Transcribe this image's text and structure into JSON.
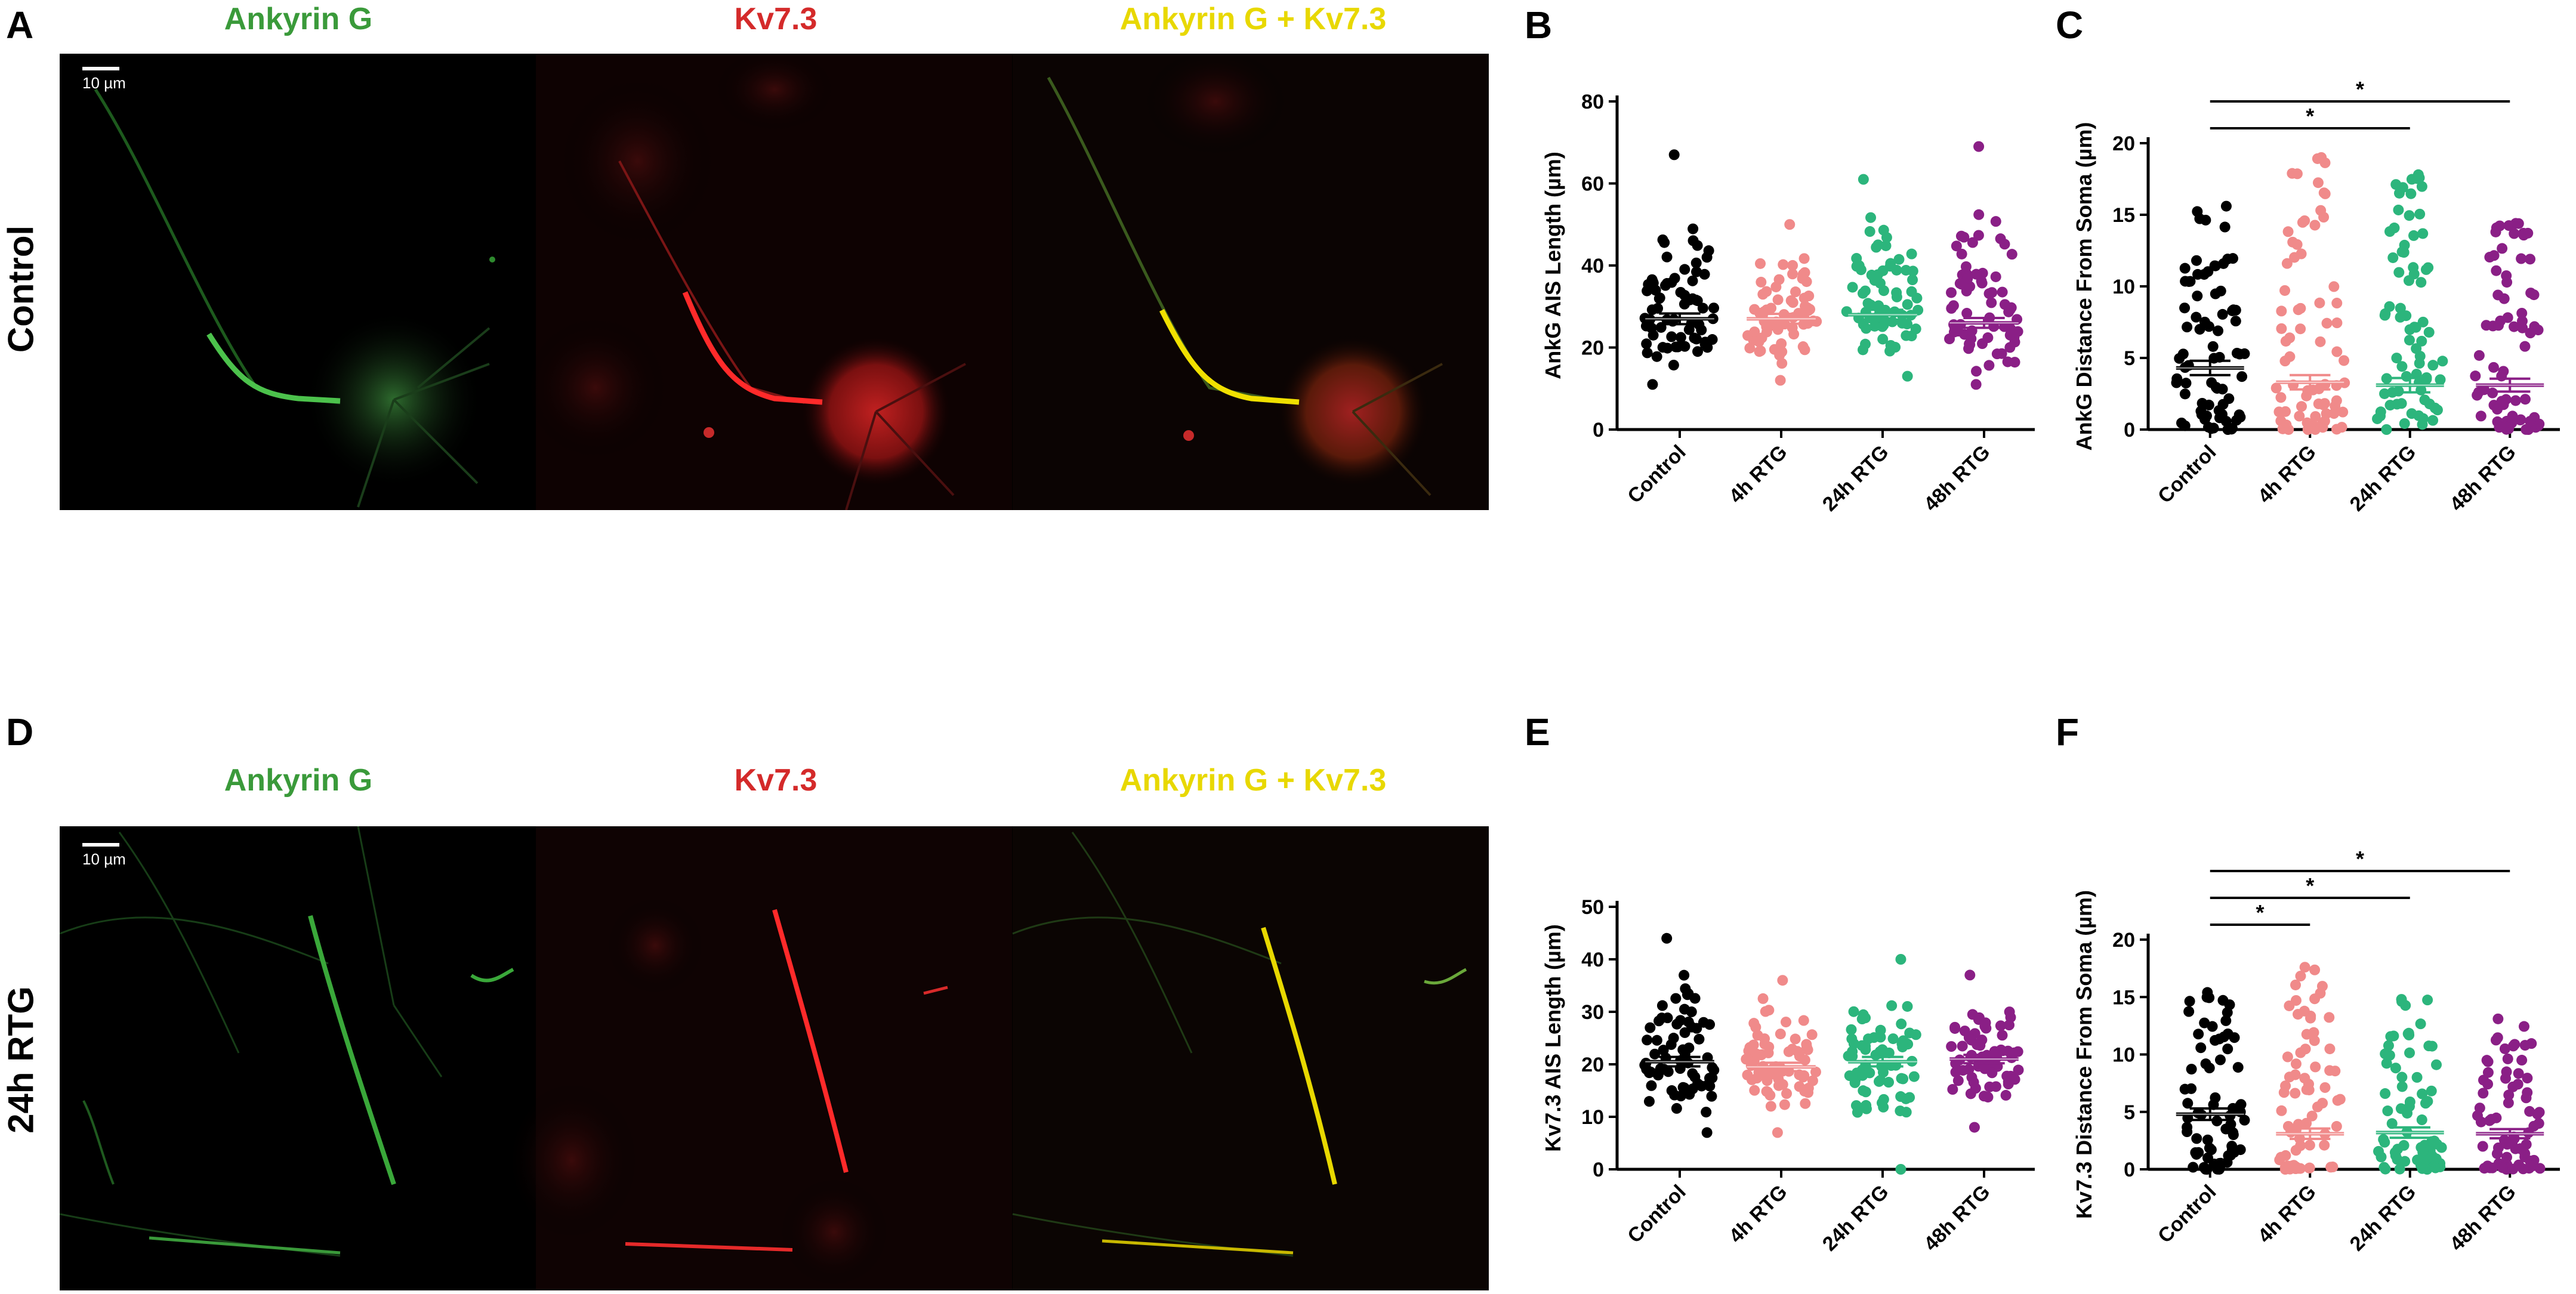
{
  "panels": {
    "A": "A",
    "B": "B",
    "C": "C",
    "D": "D",
    "E": "E",
    "F": "F"
  },
  "row_labels": {
    "top": "Control",
    "bottom": "24h RTG"
  },
  "channels": {
    "green": "Ankyrin G",
    "red": "Kv7.3",
    "merge": "Ankyrin G + Kv7.3"
  },
  "scale_bar": "10 µm",
  "colors": {
    "green": "#3a9a3a",
    "red": "#d42a2a",
    "merge": "#e8d800",
    "Control": "#000000",
    "4h RTG": "#f08a8a",
    "24h RTG": "#2cb57c",
    "48h RTG": "#8a1f86"
  },
  "chart_data": [
    {
      "type": "scatter",
      "panel": "B",
      "ylabel": "AnkG AIS Length (µm)",
      "ylim": [
        0,
        80
      ],
      "yticks": [
        0,
        20,
        40,
        60,
        80
      ],
      "categories": [
        "Control",
        "4h RTG",
        "24h RTG",
        "48h RTG"
      ],
      "series": [
        {
          "name": "Control",
          "mean": 27,
          "sem": 1.3,
          "min": 11,
          "max": 67,
          "n": 70
        },
        {
          "name": "4h RTG",
          "mean": 27,
          "sem": 1.2,
          "min": 12,
          "max": 50,
          "n": 70
        },
        {
          "name": "24h RTG",
          "mean": 28,
          "sem": 1.2,
          "min": 13,
          "max": 61,
          "n": 70
        },
        {
          "name": "48h RTG",
          "mean": 26,
          "sem": 1.2,
          "min": 11,
          "max": 69,
          "n": 70
        }
      ],
      "significance": []
    },
    {
      "type": "scatter",
      "panel": "C",
      "ylabel": "AnkG Distance From Soma (µm)",
      "ylim": [
        0,
        20
      ],
      "yticks": [
        0,
        5,
        10,
        15,
        20
      ],
      "categories": [
        "Control",
        "4h RTG",
        "24h RTG",
        "48h RTG"
      ],
      "series": [
        {
          "name": "Control",
          "mean": 4.3,
          "sem": 0.5,
          "min": 0,
          "max": 15.6,
          "n": 75
        },
        {
          "name": "4h RTG",
          "mean": 3.3,
          "sem": 0.5,
          "min": 0,
          "max": 19,
          "n": 75
        },
        {
          "name": "24h RTG",
          "mean": 3.1,
          "sem": 0.5,
          "min": 0,
          "max": 17.8,
          "n": 75
        },
        {
          "name": "48h RTG",
          "mean": 3.1,
          "sem": 0.45,
          "min": 0,
          "max": 14.4,
          "n": 75
        }
      ],
      "significance": [
        {
          "from": "Control",
          "to": "24h RTG",
          "label": "*"
        },
        {
          "from": "Control",
          "to": "48h RTG",
          "label": "*"
        }
      ]
    },
    {
      "type": "scatter",
      "panel": "E",
      "ylabel": "Kv7.3 AIS Length (µm)",
      "ylim": [
        0,
        50
      ],
      "yticks": [
        0,
        10,
        20,
        30,
        40,
        50
      ],
      "categories": [
        "Control",
        "4h RTG",
        "24h RTG",
        "48h RTG"
      ],
      "series": [
        {
          "name": "Control",
          "mean": 20.5,
          "sem": 0.9,
          "min": 7,
          "max": 44,
          "n": 70
        },
        {
          "name": "4h RTG",
          "mean": 19.5,
          "sem": 0.8,
          "min": 7,
          "max": 36,
          "n": 70
        },
        {
          "name": "24h RTG",
          "mean": 20.5,
          "sem": 0.9,
          "min": 0,
          "max": 40,
          "n": 70
        },
        {
          "name": "48h RTG",
          "mean": 21,
          "sem": 0.8,
          "min": 8,
          "max": 37,
          "n": 70
        }
      ],
      "significance": []
    },
    {
      "type": "scatter",
      "panel": "F",
      "ylabel": "Kv7.3 Distance From Soma (µm)",
      "ylim": [
        0,
        20
      ],
      "yticks": [
        0,
        5,
        10,
        15,
        20
      ],
      "categories": [
        "Control",
        "4h RTG",
        "24h RTG",
        "48h RTG"
      ],
      "series": [
        {
          "name": "Control",
          "mean": 4.8,
          "sem": 0.5,
          "min": 0,
          "max": 15.4,
          "n": 70
        },
        {
          "name": "4h RTG",
          "mean": 3.1,
          "sem": 0.45,
          "min": 0,
          "max": 17.6,
          "n": 70
        },
        {
          "name": "24h RTG",
          "mean": 3.2,
          "sem": 0.45,
          "min": 0,
          "max": 14.8,
          "n": 70
        },
        {
          "name": "48h RTG",
          "mean": 3.1,
          "sem": 0.4,
          "min": 0,
          "max": 13.1,
          "n": 70
        }
      ],
      "significance": [
        {
          "from": "Control",
          "to": "4h RTG",
          "label": "*"
        },
        {
          "from": "Control",
          "to": "24h RTG",
          "label": "*"
        },
        {
          "from": "Control",
          "to": "48h RTG",
          "label": "*"
        }
      ]
    }
  ]
}
